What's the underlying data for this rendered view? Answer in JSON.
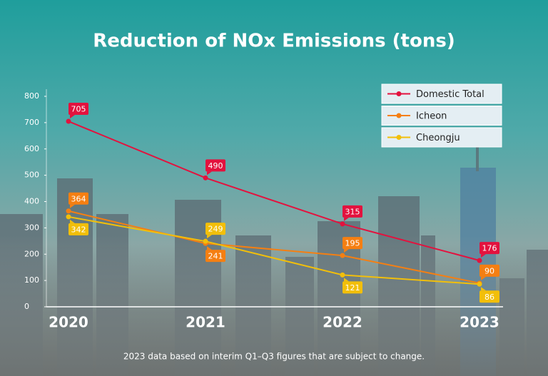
{
  "chart_data": {
    "type": "line",
    "title": "Reduction of NOx Emissions (tons)",
    "categories": [
      "2020",
      "2021",
      "2022",
      "2023"
    ],
    "series": [
      {
        "name": "Domestic Total",
        "color": "#e3123e",
        "values": [
          705,
          490,
          315,
          176
        ]
      },
      {
        "name": "Icheon",
        "color": "#f57f12",
        "values": [
          364,
          241,
          195,
          90
        ]
      },
      {
        "name": "Cheongju",
        "color": "#f2bf0a",
        "values": [
          342,
          249,
          121,
          86
        ]
      }
    ],
    "ylim": [
      0,
      800
    ],
    "yticks": [
      0,
      100,
      200,
      300,
      400,
      500,
      600,
      700,
      800
    ],
    "grid": false,
    "legend": "top-right",
    "note": "2023 data based on interim Q1–Q3 figures that are subject to change."
  }
}
